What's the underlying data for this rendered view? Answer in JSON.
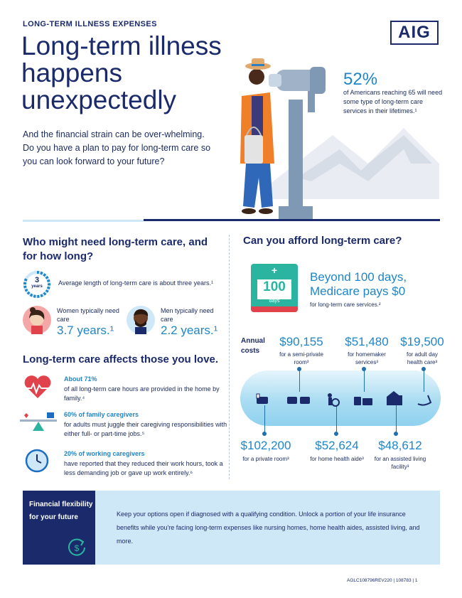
{
  "header": {
    "kicker": "LONG-TERM ILLNESS EXPENSES",
    "logo": "AIG",
    "title": "Long-term illness happens unexpectedly",
    "intro": "And the financial strain can be over-whelming. Do you have a plan to pay for long-term care so you can look forward to your future?",
    "stat_value": "52%",
    "stat_text": "of Americans reaching 65 will need some type of long-term care services in their lifetimes.¹"
  },
  "who": {
    "heading": "Who might need long-term care, and for how long?",
    "years_icon_num": "3",
    "years_icon_label": "years",
    "avg_text": "Average length of long-term care is about three years.¹",
    "women_label": "Women typically need care",
    "women_value": "3.7 years.¹",
    "men_label": "Men typically need care",
    "men_value": "2.2 years.¹"
  },
  "love": {
    "heading": "Long-term care affects those you love.",
    "items": [
      {
        "icon": "heart-monitor-icon",
        "bold": "About  71%",
        "text": "of all long-term care hours are provided in the home by family.⁴"
      },
      {
        "icon": "balance-scale-icon",
        "bold": "60% of family caregivers",
        "text": "for adults must juggle their caregiving responsibilities with either full- or part-time jobs.⁵"
      },
      {
        "icon": "clock-icon",
        "bold": "20% of working caregivers",
        "text": "have reported that they reduced their work hours, took a less demanding job or gave up work entirely.⁶"
      }
    ]
  },
  "afford": {
    "heading": "Can you afford long-term care?",
    "calendar_plus": "+",
    "calendar_num": "100",
    "calendar_unit": "days",
    "medicare_head": "Beyond 100 days, Medicare pays $0",
    "medicare_sub": "for long-term care services.²",
    "annual_label": "Annual costs",
    "top_costs": [
      {
        "value": "$90,155",
        "label": "for a semi-private room³"
      },
      {
        "value": "$51,480",
        "label": "for homemaker services³"
      },
      {
        "value": "$19,500",
        "label": "for adult day health care³"
      }
    ],
    "bottom_costs": [
      {
        "value": "$102,200",
        "label": "for a private room³"
      },
      {
        "value": "$52,624",
        "label": "for home health aide³"
      },
      {
        "value": "$48,612",
        "label": "for an assisted living facility³"
      }
    ]
  },
  "footer": {
    "title": "Financial flexibility for your future",
    "body": "Keep your options open if diagnosed with a qualifying condition. Unlock a portion of your life insurance benefits while you're facing long-term expenses like nursing homes, home health aides, assisted living, and more.",
    "code": "AGLC108796REV220  |  108783  |  1"
  },
  "colors": {
    "navy": "#1b2a6b",
    "accent_blue": "#1f86c8",
    "light_blue": "#cfe8f7",
    "red": "#e0434b",
    "teal": "#2bb5a0"
  }
}
